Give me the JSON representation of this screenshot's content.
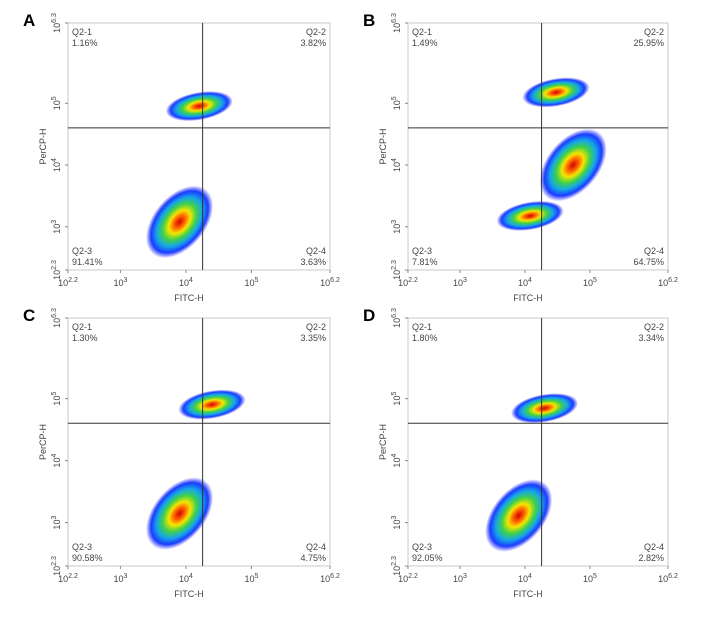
{
  "chart_data": [
    {
      "type": "density",
      "panel": "A",
      "x_label": "FITC-H",
      "y_label": "PerCP-H",
      "log_scale": true,
      "xlim": [
        158.5,
        1584893
      ],
      "ylim": [
        199.5,
        1995262
      ],
      "xticks": [
        {
          "value": 158.5,
          "base": "10",
          "exponent": "2.2"
        },
        {
          "value": 1000,
          "base": "10",
          "exponent": "3"
        },
        {
          "value": 10000,
          "base": "10",
          "exponent": "4"
        },
        {
          "value": 100000,
          "base": "10",
          "exponent": "5"
        },
        {
          "value": 1584893,
          "base": "10",
          "exponent": "6.2"
        }
      ],
      "yticks": [
        {
          "value": 199.5,
          "base": "10",
          "exponent": "2.3"
        },
        {
          "value": 1000,
          "base": "10",
          "exponent": "3"
        },
        {
          "value": 10000,
          "base": "10",
          "exponent": "4"
        },
        {
          "value": 100000,
          "base": "10",
          "exponent": "5"
        },
        {
          "value": 1995262,
          "base": "10",
          "exponent": "6.3"
        }
      ],
      "gate_x": 18000,
      "gate_y": 40000,
      "quadrants": {
        "categories": [
          "Q2-1",
          "Q2-2",
          "Q2-3",
          "Q2-4"
        ],
        "values": [
          1.16,
          3.82,
          91.41,
          3.63
        ],
        "value_labels": [
          "1.16%",
          "3.82%",
          "91.41%",
          "3.63%"
        ]
      },
      "clusters": {
        "x": [
          8000,
          16000
        ],
        "y": [
          1200,
          90000
        ]
      }
    },
    {
      "type": "density",
      "panel": "B",
      "x_label": "FITC-H",
      "y_label": "PerCP-H",
      "log_scale": true,
      "xlim": [
        158.5,
        1584893
      ],
      "ylim": [
        199.5,
        1995262
      ],
      "xticks": [
        {
          "value": 158.5,
          "base": "10",
          "exponent": "2.2"
        },
        {
          "value": 1000,
          "base": "10",
          "exponent": "3"
        },
        {
          "value": 10000,
          "base": "10",
          "exponent": "4"
        },
        {
          "value": 100000,
          "base": "10",
          "exponent": "5"
        },
        {
          "value": 1584893,
          "base": "10",
          "exponent": "6.2"
        }
      ],
      "yticks": [
        {
          "value": 199.5,
          "base": "10",
          "exponent": "2.3"
        },
        {
          "value": 1000,
          "base": "10",
          "exponent": "3"
        },
        {
          "value": 10000,
          "base": "10",
          "exponent": "4"
        },
        {
          "value": 100000,
          "base": "10",
          "exponent": "5"
        },
        {
          "value": 1995262,
          "base": "10",
          "exponent": "6.3"
        }
      ],
      "gate_x": 18000,
      "gate_y": 40000,
      "quadrants": {
        "categories": [
          "Q2-1",
          "Q2-2",
          "Q2-3",
          "Q2-4"
        ],
        "values": [
          1.49,
          25.95,
          7.81,
          64.75
        ],
        "value_labels": [
          "1.49%",
          "25.95%",
          "7.81%",
          "64.75%"
        ]
      },
      "clusters": {
        "x": [
          55000,
          12000,
          30000
        ],
        "y": [
          10000,
          1500,
          150000
        ]
      }
    },
    {
      "type": "density",
      "panel": "C",
      "x_label": "FITC-H",
      "y_label": "PerCP-H",
      "log_scale": true,
      "xlim": [
        158.5,
        1584893
      ],
      "ylim": [
        199.5,
        1995262
      ],
      "xticks": [
        {
          "value": 158.5,
          "base": "10",
          "exponent": "2.2"
        },
        {
          "value": 1000,
          "base": "10",
          "exponent": "3"
        },
        {
          "value": 10000,
          "base": "10",
          "exponent": "4"
        },
        {
          "value": 100000,
          "base": "10",
          "exponent": "5"
        },
        {
          "value": 1584893,
          "base": "10",
          "exponent": "6.2"
        }
      ],
      "yticks": [
        {
          "value": 199.5,
          "base": "10",
          "exponent": "2.3"
        },
        {
          "value": 1000,
          "base": "10",
          "exponent": "3"
        },
        {
          "value": 10000,
          "base": "10",
          "exponent": "4"
        },
        {
          "value": 100000,
          "base": "10",
          "exponent": "5"
        },
        {
          "value": 1995262,
          "base": "10",
          "exponent": "6.3"
        }
      ],
      "gate_x": 18000,
      "gate_y": 40000,
      "quadrants": {
        "categories": [
          "Q2-1",
          "Q2-2",
          "Q2-3",
          "Q2-4"
        ],
        "values": [
          1.3,
          3.35,
          90.58,
          4.75
        ],
        "value_labels": [
          "1.30%",
          "3.35%",
          "90.58%",
          "4.75%"
        ]
      },
      "clusters": {
        "x": [
          8000,
          25000
        ],
        "y": [
          1400,
          80000
        ]
      }
    },
    {
      "type": "density",
      "panel": "D",
      "x_label": "FITC-H",
      "y_label": "PerCP-H",
      "log_scale": true,
      "xlim": [
        158.5,
        1584893
      ],
      "ylim": [
        199.5,
        1995262
      ],
      "xticks": [
        {
          "value": 158.5,
          "base": "10",
          "exponent": "2.2"
        },
        {
          "value": 1000,
          "base": "10",
          "exponent": "3"
        },
        {
          "value": 10000,
          "base": "10",
          "exponent": "4"
        },
        {
          "value": 100000,
          "base": "10",
          "exponent": "5"
        },
        {
          "value": 1584893,
          "base": "10",
          "exponent": "6.2"
        }
      ],
      "yticks": [
        {
          "value": 199.5,
          "base": "10",
          "exponent": "2.3"
        },
        {
          "value": 1000,
          "base": "10",
          "exponent": "3"
        },
        {
          "value": 10000,
          "base": "10",
          "exponent": "4"
        },
        {
          "value": 100000,
          "base": "10",
          "exponent": "5"
        },
        {
          "value": 1995262,
          "base": "10",
          "exponent": "6.3"
        }
      ],
      "gate_x": 18000,
      "gate_y": 40000,
      "quadrants": {
        "categories": [
          "Q2-1",
          "Q2-2",
          "Q2-3",
          "Q2-4"
        ],
        "values": [
          1.8,
          3.34,
          92.05,
          2.82
        ],
        "value_labels": [
          "1.80%",
          "3.34%",
          "92.05%",
          "2.82%"
        ]
      },
      "clusters": {
        "x": [
          8000,
          20000
        ],
        "y": [
          1300,
          70000
        ]
      }
    }
  ]
}
